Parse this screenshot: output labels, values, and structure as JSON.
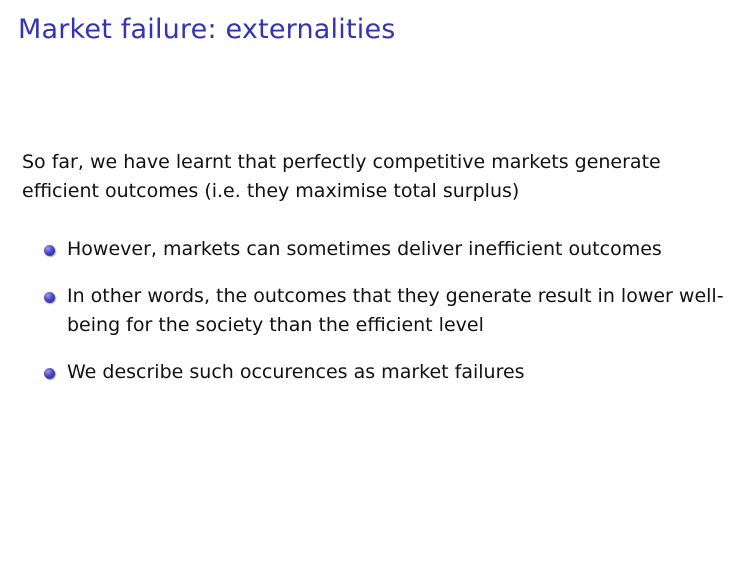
{
  "slide": {
    "title": "Market failure: externalities",
    "intro": "So far, we have learnt that perfectly competitive markets generate efficient outcomes (i.e.  they maximise total surplus)",
    "bullets": [
      {
        "text": "However, markets can sometimes deliver inefficient outcomes"
      },
      {
        "text": "In other words, the outcomes that they generate result in lower well-being for the society than the efficient level"
      },
      {
        "text": "We describe such occurences as market failures"
      }
    ],
    "colors": {
      "title": "#3333b3",
      "text": "#111111",
      "bullet": "#4a4ac8"
    },
    "icons": {
      "bullet": "bullet-icon"
    }
  }
}
